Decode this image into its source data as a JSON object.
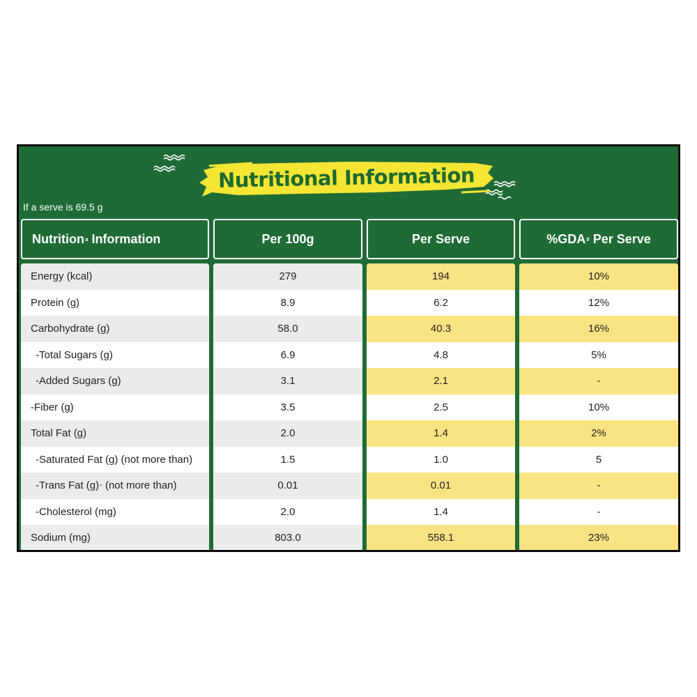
{
  "title": "Nutritional Information",
  "serve_note": "If a serve is 69.5 g",
  "headers": {
    "nutrient": "Nutrition",
    "nutrient_sup": "a",
    "nutrient_suffix": " Information",
    "per100": "Per 100g",
    "perserve": "Per Serve",
    "gda_prefix": "%GDA",
    "gda_sup": "#",
    "gda_suffix": " Per Serve"
  },
  "rows": [
    {
      "label": "Energy (kcal)",
      "per100": "279",
      "perserve": "194",
      "gda": "10%"
    },
    {
      "label": "Protein (g)",
      "per100": "8.9",
      "perserve": "6.2",
      "gda": "12%"
    },
    {
      "label": "Carbohydrate (g)",
      "per100": "58.0",
      "perserve": "40.3",
      "gda": "16%"
    },
    {
      "label": "-Total Sugars (g)",
      "per100": "6.9",
      "perserve": "4.8",
      "gda": "5%"
    },
    {
      "label": "-Added Sugars (g)",
      "per100": "3.1",
      "perserve": "2.1",
      "gda": "-"
    },
    {
      "label": "-Fiber (g)",
      "per100": "3.5",
      "perserve": "2.5",
      "gda": "10%"
    },
    {
      "label": "Total Fat (g)",
      "per100": "2.0",
      "perserve": "1.4",
      "gda": "2%"
    },
    {
      "label": "-Saturated Fat (g) (not more than)",
      "per100": "1.5",
      "perserve": "1.0",
      "gda": "5"
    },
    {
      "label": "-Trans Fat (g)",
      "label_sup": "~",
      "label_suffix": " (not more than)",
      "per100": "0.01",
      "perserve": "0.01",
      "gda": "-"
    },
    {
      "label": "-Cholesterol (mg)",
      "per100": "2.0",
      "perserve": "1.4",
      "gda": "-"
    },
    {
      "label": "Sodium (mg)",
      "per100": "803.0",
      "perserve": "558.1",
      "gda": "23%"
    }
  ],
  "colors": {
    "panel_green": "#1f6b35",
    "banner_yellow": "#f5e634",
    "row_yellow": "#fae382",
    "row_grey": "#ebebeb"
  }
}
